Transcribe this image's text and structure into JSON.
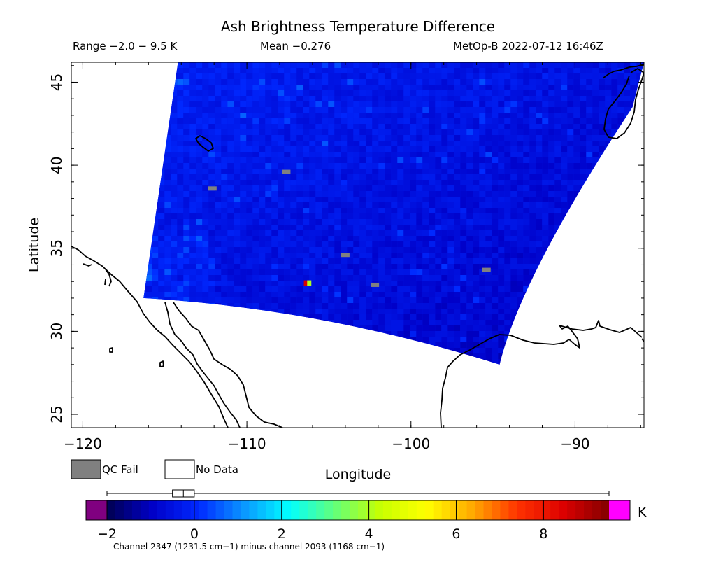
{
  "chart_data": {
    "type": "heatmap",
    "title": "Ash Brightness Temperature Difference",
    "header": {
      "range": "Range −2.0 − 9.5 K",
      "mean": "Mean −0.276",
      "source": "MetOp-B 2022-07-12 16:46Z"
    },
    "xlabel": "Longitude",
    "ylabel": "Latitude",
    "xlim": [
      -120.7,
      -85.8
    ],
    "ylim": [
      24.2,
      46.2
    ],
    "xticks": [
      -120,
      -110,
      -100,
      -90
    ],
    "xtick_labels": [
      "−120",
      "−110",
      "−100",
      "−90"
    ],
    "yticks": [
      25,
      30,
      35,
      40,
      45
    ],
    "ytick_labels": [
      "25",
      "30",
      "35",
      "40",
      "45"
    ],
    "swath_corners": {
      "top_left": [
        -114.2,
        46.2
      ],
      "top_right": [
        -85.8,
        46.2
      ],
      "right_edge": [
        -86.5,
        43.5
      ],
      "bottom_right": [
        -94.6,
        28.0
      ],
      "bottom_left": [
        -116.3,
        32.0
      ]
    },
    "background_value": -0.3,
    "qc_fail_points": [
      [
        -107.6,
        39.6
      ],
      [
        -112.1,
        38.6
      ],
      [
        -104.0,
        34.6
      ],
      [
        -102.2,
        32.8
      ],
      [
        -95.4,
        33.7
      ]
    ],
    "hot_pixels": [
      {
        "lon": -106.4,
        "lat": 32.9,
        "value": 8.5
      },
      {
        "lon": -106.2,
        "lat": 32.9,
        "value": 4.0
      }
    ],
    "colorbar": {
      "min": -2,
      "max": 9.5,
      "ticks": [
        -2,
        0,
        2,
        4,
        6,
        8
      ],
      "tick_labels": [
        "−2",
        "0",
        "2",
        "4",
        "6",
        "8"
      ],
      "unit": "K",
      "boxplot": {
        "whisker_low": -2.0,
        "q1": -0.5,
        "q3": 0.0,
        "whisker_high": 9.5
      },
      "under_color": "#800080",
      "over_color": "#ff00ff",
      "stops": [
        "#000050",
        "#0000c8",
        "#0028ff",
        "#0a96ff",
        "#00ffff",
        "#64ff78",
        "#c8ff00",
        "#ffff00",
        "#ffaa00",
        "#ff3200",
        "#dc0000",
        "#820000"
      ]
    },
    "legend": [
      {
        "label": "QC Fail",
        "color": "#808080"
      },
      {
        "label": "No Data",
        "color": "#ffffff"
      }
    ],
    "footer": "Channel 2347 (1231.5 cm−1) minus channel 2093 (1168 cm−1)"
  }
}
